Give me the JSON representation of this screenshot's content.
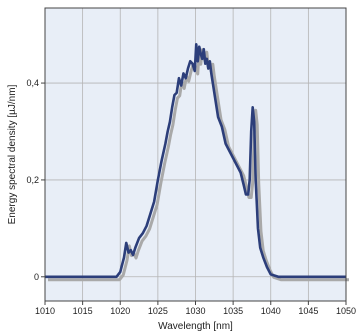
{
  "chart_data": {
    "type": "line",
    "title": "",
    "xlabel": "Wavelength [nm]",
    "ylabel": "Energy spectral density [µJ/nm]",
    "xlim": [
      1010,
      1050
    ],
    "ylim": [
      -0.05,
      0.555
    ],
    "x_ticks": [
      1010,
      1015,
      1020,
      1025,
      1030,
      1035,
      1040,
      1045,
      1050
    ],
    "x_tick_labels": [
      "1010",
      "1015",
      "1020",
      "1025",
      "1030",
      "1035",
      "1040",
      "1045",
      "1050"
    ],
    "y_ticks": [
      0,
      0.2,
      0.4
    ],
    "y_tick_labels": [
      "0",
      "0,2",
      "0,4"
    ],
    "grid": true,
    "colors": {
      "plot_background": "#e8eef7",
      "grid": "#b4b4b4",
      "line": "#2c3e7a",
      "shadow": "#a9a9a9"
    },
    "series": [
      {
        "x": [
          1010,
          1019.5,
          1020,
          1020.5,
          1020.8,
          1021.1,
          1021.4,
          1021.7,
          1022,
          1022.5,
          1023,
          1023.5,
          1024,
          1024.5,
          1025,
          1025.5,
          1026,
          1026.3,
          1026.6,
          1026.9,
          1027.2,
          1027.5,
          1027.8,
          1028.1,
          1028.4,
          1028.7,
          1029,
          1029.3,
          1029.6,
          1029.9,
          1030.1,
          1030.3,
          1030.5,
          1030.7,
          1030.9,
          1031.1,
          1031.3,
          1031.5,
          1031.7,
          1031.9,
          1032.1,
          1032.3,
          1032.6,
          1033,
          1033.5,
          1034,
          1034.5,
          1035,
          1035.5,
          1036,
          1036.4,
          1036.7,
          1037,
          1037.2,
          1037.4,
          1037.6,
          1037.8,
          1038,
          1038.3,
          1038.6,
          1039,
          1039.5,
          1040,
          1041,
          1050
        ],
        "y": [
          0,
          0,
          0.01,
          0.04,
          0.07,
          0.05,
          0.055,
          0.045,
          0.06,
          0.08,
          0.09,
          0.105,
          0.13,
          0.155,
          0.2,
          0.24,
          0.275,
          0.3,
          0.32,
          0.35,
          0.375,
          0.38,
          0.41,
          0.395,
          0.42,
          0.41,
          0.43,
          0.445,
          0.44,
          0.425,
          0.48,
          0.445,
          0.475,
          0.46,
          0.45,
          0.47,
          0.44,
          0.45,
          0.43,
          0.445,
          0.42,
          0.4,
          0.37,
          0.33,
          0.31,
          0.275,
          0.26,
          0.245,
          0.23,
          0.215,
          0.19,
          0.17,
          0.17,
          0.2,
          0.3,
          0.35,
          0.32,
          0.2,
          0.1,
          0.06,
          0.04,
          0.02,
          0.005,
          0,
          0
        ]
      }
    ]
  }
}
